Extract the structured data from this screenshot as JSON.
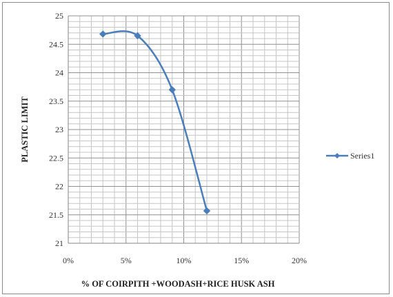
{
  "chart_data": {
    "type": "line",
    "title": "",
    "xlabel": "% OF COIRPITH +WOODASH+RICE HUSK ASH",
    "ylabel": "PLASTIC LIMIT",
    "x_format": "percent",
    "xlim": [
      0,
      0.2
    ],
    "ylim": [
      21,
      25
    ],
    "x_ticks": [
      0,
      0.05,
      0.1,
      0.15,
      0.2
    ],
    "x_tick_labels": [
      "0%",
      "5%",
      "10%",
      "15%",
      "20%"
    ],
    "y_ticks": [
      21,
      21.5,
      22,
      22.5,
      23,
      23.5,
      24,
      24.5,
      25
    ],
    "y_tick_labels": [
      "21",
      "21.5",
      "22",
      "22.5",
      "23",
      "23.5",
      "24",
      "24.5",
      "25"
    ],
    "grid": true,
    "smooth": true,
    "legend_position": "right",
    "series": [
      {
        "name": "Series1",
        "color": "#4a7ebb",
        "marker": "diamond",
        "x": [
          0.03,
          0.06,
          0.09,
          0.12
        ],
        "y": [
          24.68,
          24.65,
          23.7,
          21.57
        ]
      }
    ]
  }
}
